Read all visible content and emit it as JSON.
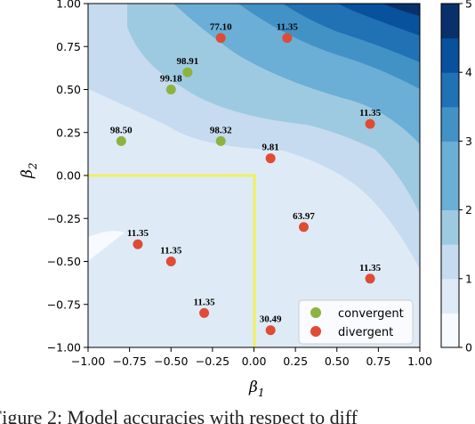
{
  "chart_data": {
    "type": "scatter",
    "xlabel": "β",
    "xlabel_sub": "1",
    "ylabel": "β",
    "ylabel_sub": "2",
    "xlim": [
      -1.0,
      1.0
    ],
    "ylim": [
      -1.0,
      1.0
    ],
    "x_ticks": [
      "−1.00",
      "−0.75",
      "−0.50",
      "−0.25",
      "0.00",
      "0.25",
      "0.50",
      "0.75",
      "1.00"
    ],
    "y_ticks": [
      "1.00",
      "0.75",
      "0.50",
      "0.25",
      "0.00",
      "−0.25",
      "−0.50",
      "−0.75",
      "−1.00"
    ],
    "colorbar": {
      "range": [
        0,
        5
      ],
      "ticks": [
        "0",
        "1",
        "2",
        "3",
        "4",
        "5"
      ],
      "colors": [
        "#f7fbff",
        "#deebf7",
        "#c6dbef",
        "#9ecae1",
        "#6baed6",
        "#4292c6",
        "#2171b5",
        "#08519c",
        "#08306b"
      ]
    },
    "background": "filled contour of a quantity between 0 and 5, lowest near (-0.9,-0.45), increasing toward the top-right corner",
    "region": {
      "x": [
        -1.0,
        0.0
      ],
      "y": [
        -1.0,
        0.0
      ],
      "color": "#f0f05a"
    },
    "series": [
      {
        "name": "convergent",
        "color": "#8db33f",
        "points": [
          {
            "x": -0.4,
            "y": 0.6,
            "label": "98.91"
          },
          {
            "x": -0.5,
            "y": 0.5,
            "label": "99.18"
          },
          {
            "x": -0.8,
            "y": 0.2,
            "label": "98.50"
          },
          {
            "x": -0.2,
            "y": 0.2,
            "label": "98.32"
          }
        ]
      },
      {
        "name": "divergent",
        "color": "#e04b35",
        "points": [
          {
            "x": -0.2,
            "y": 0.8,
            "label": "77.10"
          },
          {
            "x": 0.2,
            "y": 0.8,
            "label": "11.35"
          },
          {
            "x": 0.7,
            "y": 0.3,
            "label": "11.35"
          },
          {
            "x": 0.1,
            "y": 0.1,
            "label": "9.81"
          },
          {
            "x": 0.3,
            "y": -0.3,
            "label": "63.97"
          },
          {
            "x": -0.7,
            "y": -0.4,
            "label": "11.35"
          },
          {
            "x": -0.5,
            "y": -0.5,
            "label": "11.35"
          },
          {
            "x": 0.7,
            "y": -0.6,
            "label": "11.35"
          },
          {
            "x": -0.3,
            "y": -0.8,
            "label": "11.35"
          },
          {
            "x": 0.1,
            "y": -0.9,
            "label": "30.49"
          }
        ]
      }
    ],
    "legend": {
      "placement": "lower-right"
    }
  },
  "caption": "Figure 2: Model accuracies with respect to diff"
}
